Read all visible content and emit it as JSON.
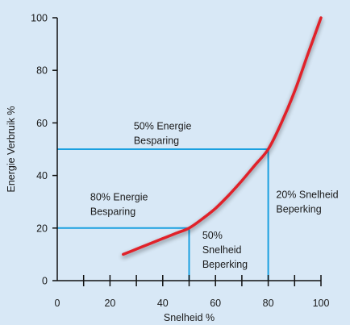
{
  "colors": {
    "background": "#d8e8f6",
    "curve": "#e0202a",
    "guide": "#1aa0e0",
    "axis": "#111111"
  },
  "chart_data": {
    "type": "line",
    "xlabel": "Snelheid %",
    "ylabel": "Energie Verbruik %",
    "xlim": [
      0,
      100
    ],
    "ylim": [
      0,
      100
    ],
    "x_ticks": [
      0,
      20,
      40,
      60,
      80,
      100
    ],
    "y_ticks": [
      0,
      20,
      40,
      60,
      80,
      100
    ],
    "x_minor_ticks": [
      10,
      20,
      30,
      40,
      50,
      60,
      70,
      80,
      90,
      100
    ],
    "grid": false,
    "series": [
      {
        "x": [
          25,
          30,
          35,
          40,
          45,
          50,
          55,
          60,
          65,
          70,
          75,
          80,
          85,
          90,
          95,
          100
        ],
        "values": [
          10,
          12,
          14,
          16,
          18,
          20,
          23.5,
          27.5,
          32.5,
          38,
          44,
          50,
          60,
          72,
          86,
          100
        ]
      }
    ],
    "guides": [
      {
        "x": 50,
        "y": 20
      },
      {
        "x": 80,
        "y": 50
      }
    ],
    "annotations": [
      {
        "id": "energy-50",
        "lines": [
          "50% Energie",
          "Besparing"
        ],
        "x": 29,
        "y": 57.5
      },
      {
        "id": "energy-80",
        "lines": [
          "80% Energie",
          "Besparing"
        ],
        "x": 12.5,
        "y": 30.5
      },
      {
        "id": "speed-50",
        "lines": [
          "50%",
          "Snelheid",
          "Beperking"
        ],
        "x": 55,
        "y": 16
      },
      {
        "id": "speed-20",
        "lines": [
          "20% Snelheid",
          "Beperking"
        ],
        "x": 83,
        "y": 31.5
      }
    ]
  }
}
